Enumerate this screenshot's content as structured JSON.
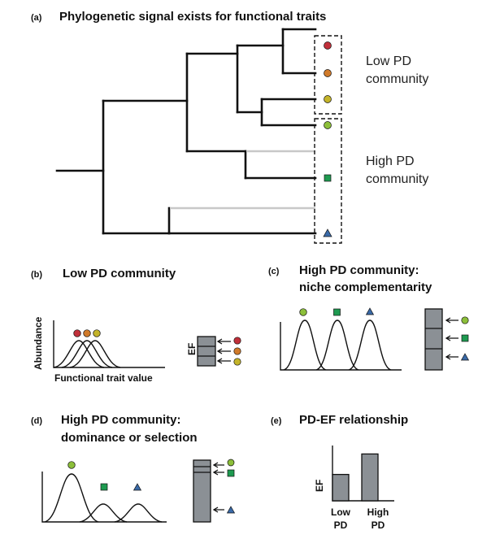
{
  "colors": {
    "red": "#c0303a",
    "orange": "#d07a2a",
    "yellow_green": "#c4b42a",
    "light_green": "#8cbf3a",
    "green": "#1e9a50",
    "blue": "#3a6aa8",
    "bar_grey": "#8b9095"
  },
  "panel_a": {
    "label": "(a)",
    "title": "Phylogenetic signal exists for functional traits",
    "low_pd_line1": "Low PD",
    "low_pd_line2": "community",
    "high_pd_line1": "High PD",
    "high_pd_line2": "community",
    "tips": [
      {
        "shape": "circle",
        "color": "red"
      },
      {
        "shape": "circle",
        "color": "orange"
      },
      {
        "shape": "circle",
        "color": "yellow_green"
      },
      {
        "shape": "circle",
        "color": "light_green"
      },
      {
        "shape": "none"
      },
      {
        "shape": "square",
        "color": "green"
      },
      {
        "shape": "none"
      },
      {
        "shape": "triangle",
        "color": "blue"
      }
    ]
  },
  "panel_b": {
    "label": "(b)",
    "title": "Low PD community",
    "ylabel": "Abundance",
    "xlabel": "Functional trait value",
    "ef_label": "EF"
  },
  "panel_c": {
    "label": "(c)",
    "title_line1": "High PD community:",
    "title_line2": "niche complementarity"
  },
  "panel_d": {
    "label": "(d)",
    "title_line1": "High PD community:",
    "title_line2": "dominance or selection"
  },
  "panel_e": {
    "label": "(e)",
    "title": "PD-EF relationship",
    "ylabel": "EF",
    "bars": [
      {
        "label_line1": "Low",
        "label_line2": "PD",
        "value": 0.45
      },
      {
        "label_line1": "High",
        "label_line2": "PD",
        "value": 0.8
      }
    ]
  }
}
